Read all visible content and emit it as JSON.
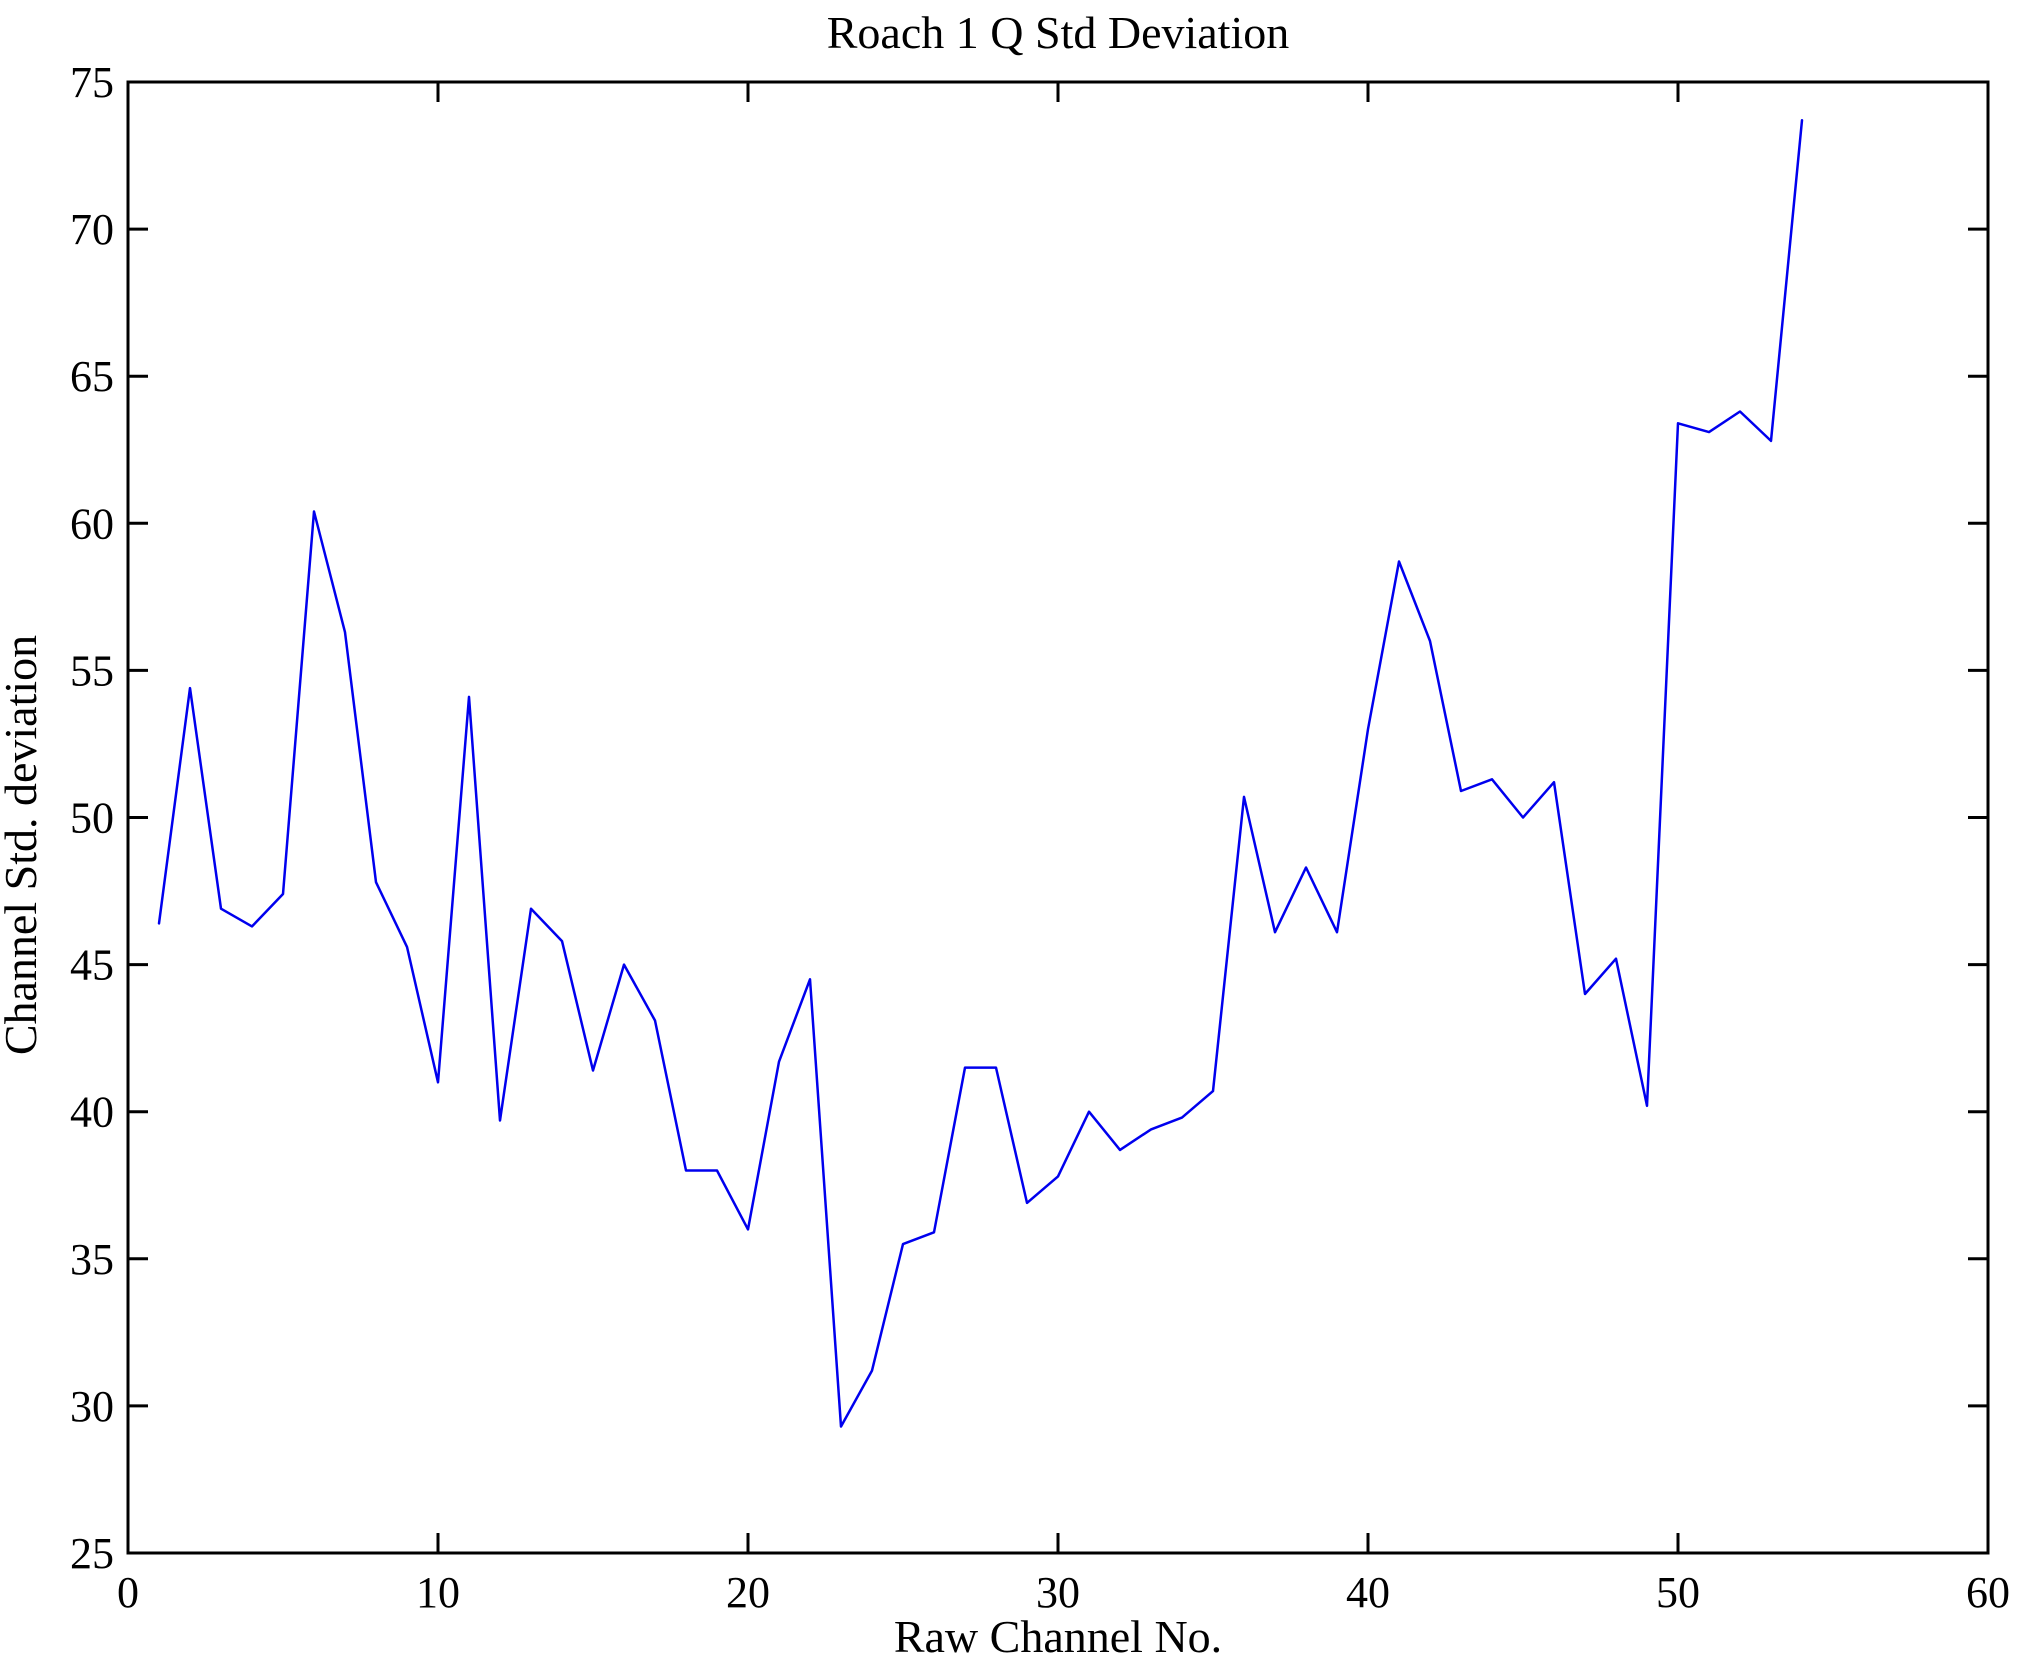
{
  "figure": {
    "background_color": "#ffffff",
    "axes_color": "#000000"
  },
  "chart_data": {
    "type": "line",
    "title": "Roach 1 Q Std Deviation",
    "xlabel": "Raw Channel No.",
    "ylabel": "Channel Std. deviation",
    "xlim": [
      0,
      60
    ],
    "ylim": [
      25,
      75
    ],
    "xticks": [
      0,
      10,
      20,
      30,
      40,
      50,
      60
    ],
    "yticks": [
      25,
      30,
      35,
      40,
      45,
      50,
      55,
      60,
      65,
      70,
      75
    ],
    "grid": false,
    "box": true,
    "legend": "none",
    "line_color": "#0000ee",
    "line_width": 2.5,
    "markers": "none",
    "series": [
      {
        "name": "channel-std-deviation",
        "x": {
          "from": 1,
          "to": 54,
          "step": 1
        },
        "y": [
          46.4,
          54.4,
          46.9,
          46.3,
          47.4,
          60.4,
          56.3,
          47.8,
          45.6,
          41.0,
          54.1,
          39.7,
          46.9,
          45.8,
          41.4,
          45.0,
          43.1,
          38.0,
          38.0,
          36.0,
          41.7,
          44.5,
          29.3,
          31.2,
          35.5,
          35.9,
          41.5,
          41.5,
          36.9,
          37.8,
          40.0,
          38.7,
          39.4,
          39.8,
          40.7,
          50.7,
          46.1,
          48.3,
          46.1,
          53.0,
          58.7,
          56.0,
          50.9,
          51.3,
          50.0,
          51.2,
          44.0,
          45.2,
          40.2,
          63.4,
          63.1,
          63.8,
          62.8,
          73.7
        ]
      }
    ]
  }
}
